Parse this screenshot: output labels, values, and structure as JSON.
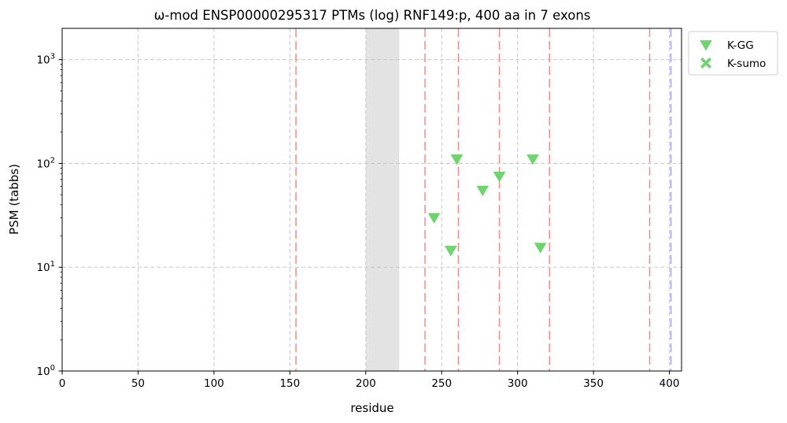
{
  "chart_data": {
    "type": "scatter",
    "title": "ω-mod ENSP00000295317 PTMs (log) RNF149:p, 400 aa in 7 exons",
    "xlabel": "residue",
    "ylabel": "PSM (tabbs)",
    "xlim": [
      0,
      408
    ],
    "ylim": [
      1,
      2000
    ],
    "yscale": "log",
    "grid": true,
    "legend_placement": "outside top-right",
    "x_ticks": [
      {
        "value": 0,
        "label": "0"
      },
      {
        "value": 50,
        "label": "50"
      },
      {
        "value": 100,
        "label": "100"
      },
      {
        "value": 150,
        "label": "150"
      },
      {
        "value": 200,
        "label": "200"
      },
      {
        "value": 250,
        "label": "250"
      },
      {
        "value": 300,
        "label": "300"
      },
      {
        "value": 350,
        "label": "350"
      },
      {
        "value": 400,
        "label": "400"
      }
    ],
    "y_ticks": [
      {
        "value": 1,
        "base": "10",
        "exp": "0"
      },
      {
        "value": 10,
        "base": "10",
        "exp": "1"
      },
      {
        "value": 100,
        "base": "10",
        "exp": "2"
      },
      {
        "value": 1000,
        "base": "10",
        "exp": "3"
      }
    ],
    "shaded_region": {
      "x_start": 200,
      "x_end": 222,
      "color": "#e3e3e3"
    },
    "exon_boundaries": [
      154,
      239,
      261,
      288,
      321,
      387
    ],
    "exon_boundary_color": "#f08c8c",
    "protein_end_line": 401,
    "protein_end_color": "#a0a0f0",
    "series": [
      {
        "name": "K-GG",
        "marker": "triangle-down",
        "color": "#6fd46f",
        "points": [
          {
            "x": 245,
            "y": 30
          },
          {
            "x": 256,
            "y": 14.5
          },
          {
            "x": 260,
            "y": 110
          },
          {
            "x": 277,
            "y": 55
          },
          {
            "x": 288,
            "y": 75
          },
          {
            "x": 310,
            "y": 110
          },
          {
            "x": 315,
            "y": 15.5
          }
        ]
      },
      {
        "name": "K-sumo",
        "marker": "x-filled",
        "color": "#6fd46f",
        "points": []
      }
    ]
  }
}
